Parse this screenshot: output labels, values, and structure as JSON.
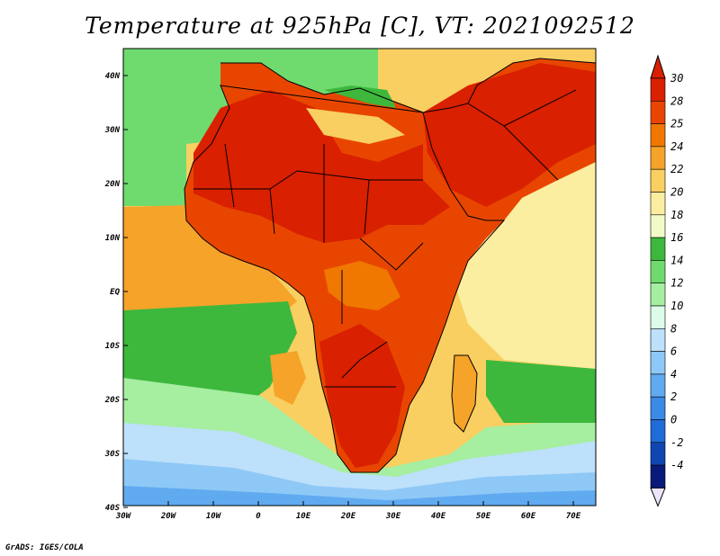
{
  "title": "Temperature at 925hPa [C], VT: 2021092512",
  "credit": "GrADS: IGES/COLA",
  "map": {
    "variable": "Temperature at 925hPa",
    "units": "C",
    "valid_time": "2021092512",
    "lon_range": [
      -30,
      75
    ],
    "lat_range": [
      -40,
      45
    ],
    "x_ticks": [
      "30W",
      "20W",
      "10W",
      "0",
      "10E",
      "20E",
      "30E",
      "40E",
      "50E",
      "60E",
      "70E"
    ],
    "y_ticks": [
      "40N",
      "30N",
      "20N",
      "10N",
      "EQ",
      "10S",
      "20S",
      "30S",
      "40S"
    ]
  },
  "colorbar": {
    "labels": [
      "30",
      "28",
      "25",
      "24",
      "22",
      "20",
      "18",
      "16",
      "14",
      "12",
      "10",
      "8",
      "6",
      "4",
      "2",
      "0",
      "-2",
      "-4"
    ],
    "colors": [
      "#d92000",
      "#e84600",
      "#f07800",
      "#f6a32a",
      "#f8cf60",
      "#fbeea0",
      "#f2fbc8",
      "#3db83d",
      "#6fdb6f",
      "#a6eea0",
      "#dcfbe8",
      "#bde0fb",
      "#8ec8f6",
      "#60aaf0",
      "#3a8ae6",
      "#1f6cd8",
      "#1046b0",
      "#0a1a7a"
    ],
    "top_arrow_color": "#d92000",
    "bottom_arrow_color": "#ebe4fa"
  }
}
